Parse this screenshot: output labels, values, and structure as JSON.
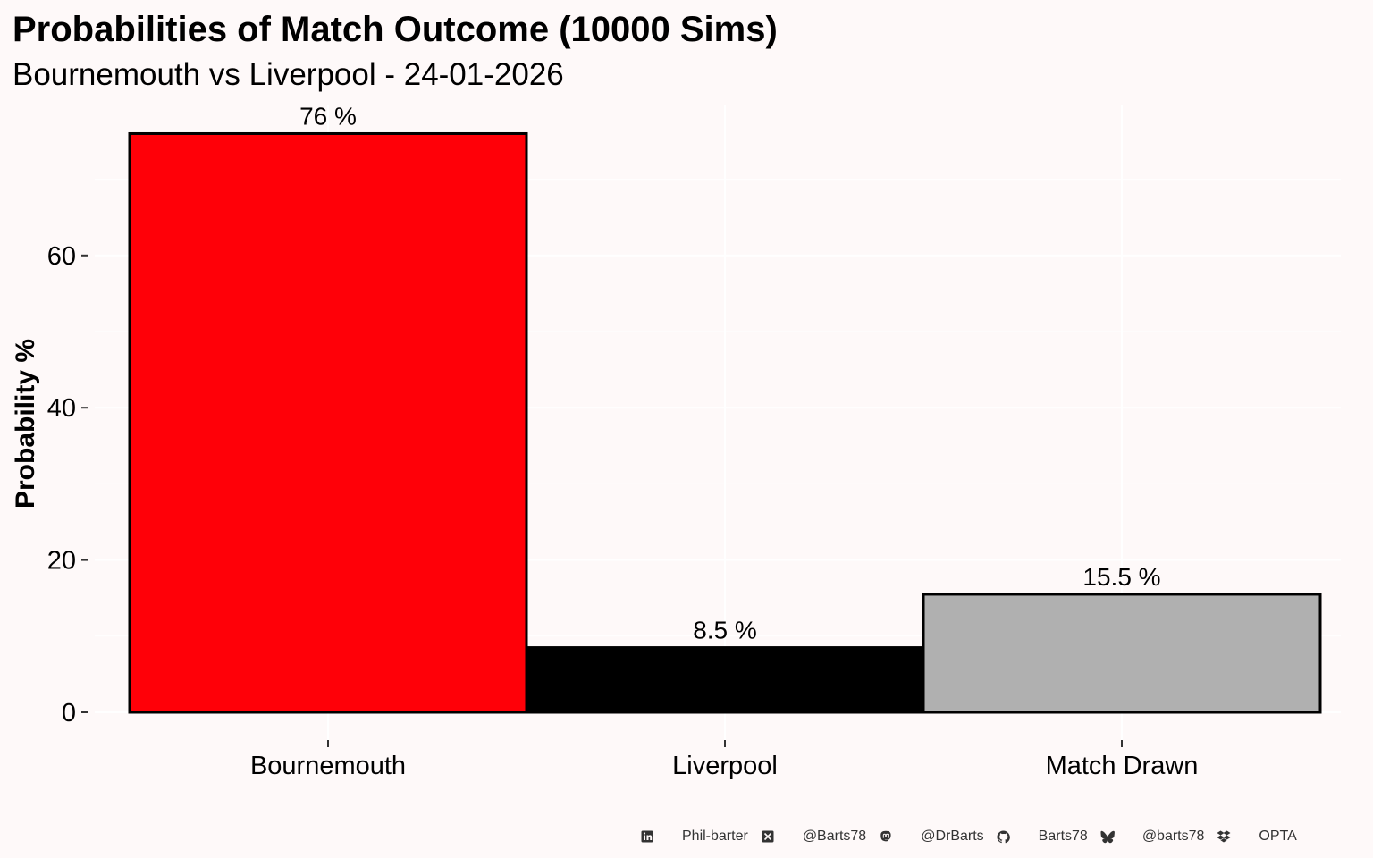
{
  "chart_data": {
    "type": "bar",
    "title": "Probabilities of Match Outcome (10000 Sims)",
    "subtitle": "Bournemouth vs Liverpool - 24-01-2026",
    "xlabel": "",
    "ylabel": "Probability %",
    "categories": [
      "Bournemouth",
      "Liverpool",
      "Match Drawn"
    ],
    "values": [
      76,
      8.5,
      15.5
    ],
    "data_labels": [
      "76  %",
      "8.5  %",
      "15.5  %"
    ],
    "colors": [
      "#ff0008",
      "#000000",
      "#b0b0b0"
    ],
    "yticks": [
      0,
      20,
      40,
      60
    ],
    "ytick_labels": [
      "0",
      "20",
      "40",
      "60"
    ],
    "ylim": [
      0,
      79.8
    ],
    "grid": true,
    "legend": "none"
  },
  "caption": {
    "items": [
      {
        "icon": "linkedin-icon",
        "text": "Phil-barter"
      },
      {
        "icon": "x-twitter-icon",
        "text": "@Barts78"
      },
      {
        "icon": "mastodon-icon",
        "text": "@DrBarts"
      },
      {
        "icon": "github-icon",
        "text": "Barts78"
      },
      {
        "icon": "bluesky-icon",
        "text": "@barts78"
      },
      {
        "icon": "dropbox-icon",
        "text": "OPTA"
      }
    ]
  },
  "colors": {
    "background": "#fef9f9",
    "text": "#000000"
  }
}
